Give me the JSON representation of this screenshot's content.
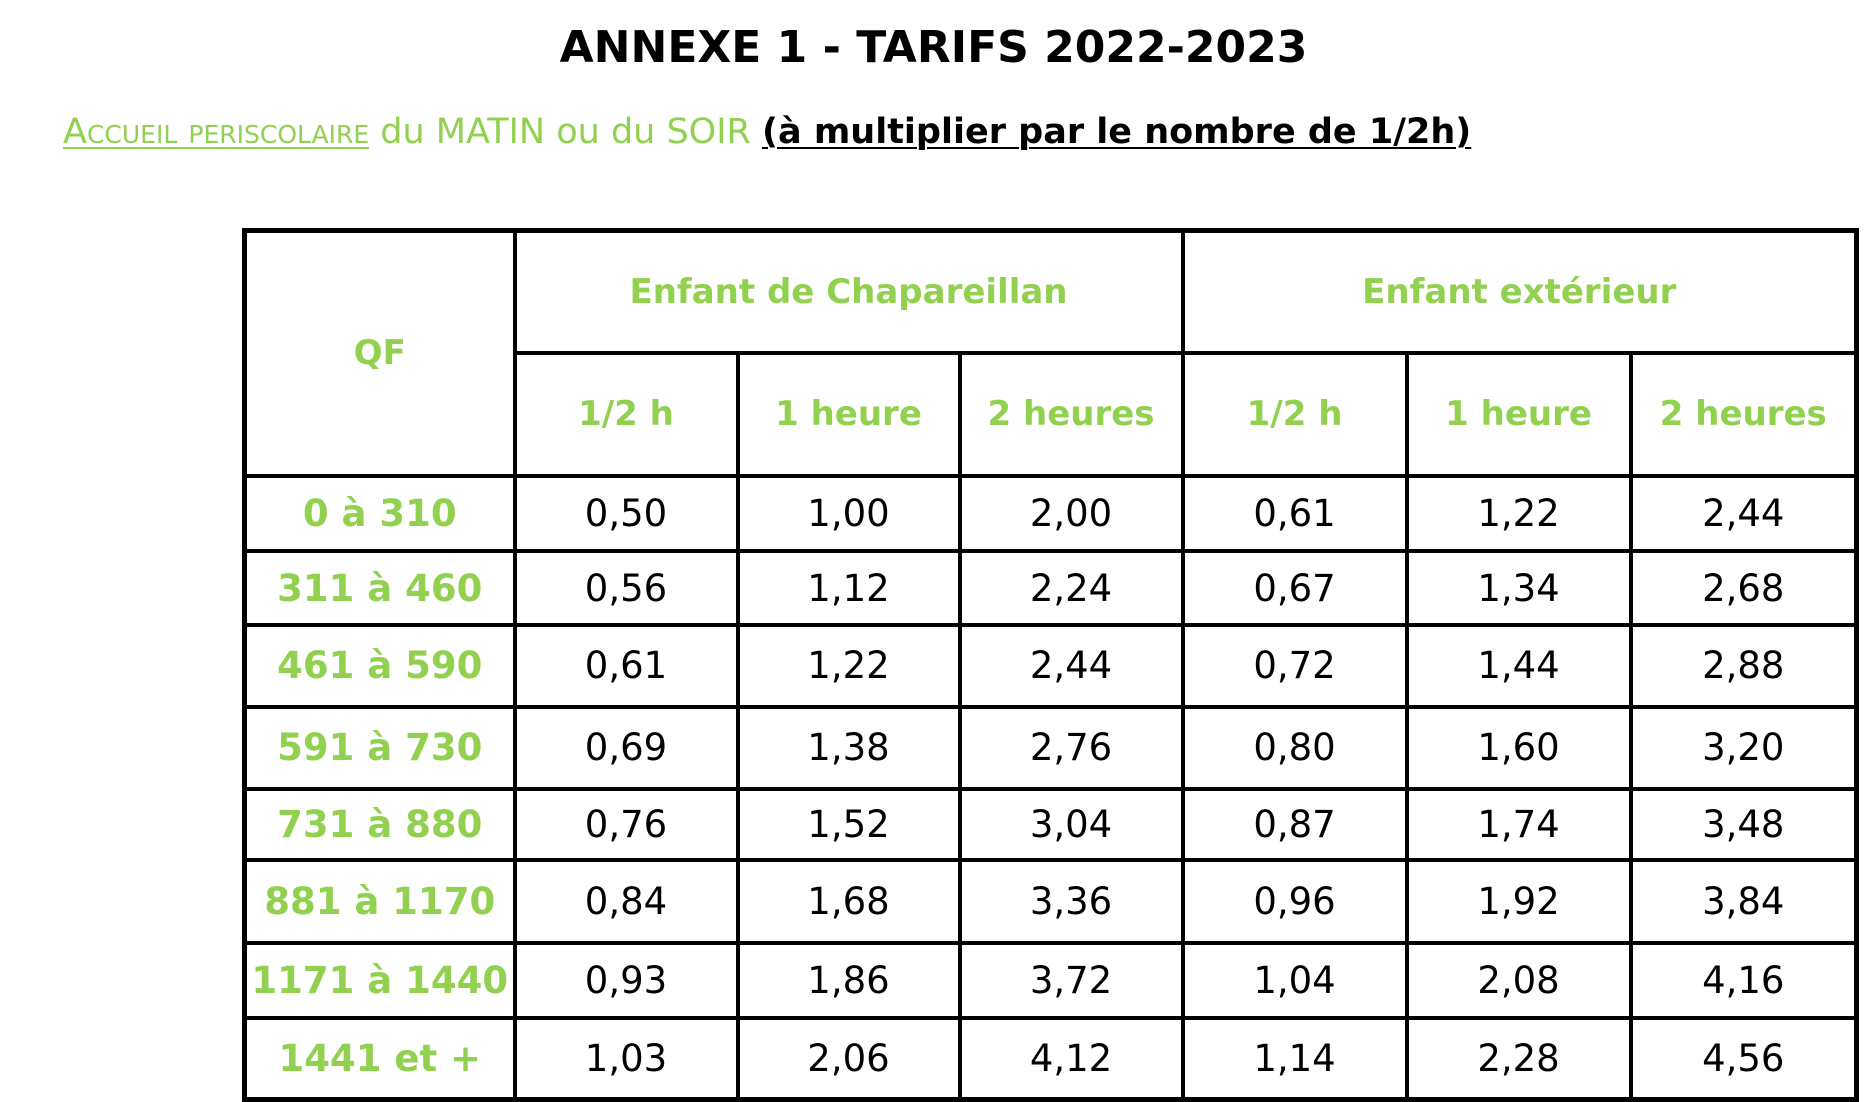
{
  "document": {
    "title": "ANNEXE 1 - TARIFS 2022-2023",
    "subtitle": {
      "part1": "Accueil periscolaire",
      "part2": " du MATIN ou du SOIR ",
      "part3": "(à multiplier par le nombre de 1/2h)"
    },
    "colors": {
      "accent_green": "#92d050",
      "text_black": "#000000"
    }
  },
  "table": {
    "qf_header": "QF",
    "groups": [
      {
        "label": "Enfant de Chapareillan"
      },
      {
        "label": "Enfant extérieur"
      }
    ],
    "subheaders": [
      "1/2 h",
      "1 heure",
      "2 heures",
      "1/2 h",
      "1 heure",
      "2 heures"
    ],
    "rows": [
      {
        "qf": "0 à 310",
        "values": [
          "0,50",
          "1,00",
          "2,00",
          "0,61",
          "1,22",
          "2,44"
        ]
      },
      {
        "qf": "311 à 460",
        "values": [
          "0,56",
          "1,12",
          "2,24",
          "0,67",
          "1,34",
          "2,68"
        ]
      },
      {
        "qf": "461 à 590",
        "values": [
          "0,61",
          "1,22",
          "2,44",
          "0,72",
          "1,44",
          "2,88"
        ]
      },
      {
        "qf": "591 à 730",
        "values": [
          "0,69",
          "1,38",
          "2,76",
          "0,80",
          "1,60",
          "3,20"
        ]
      },
      {
        "qf": "731 à 880",
        "values": [
          "0,76",
          "1,52",
          "3,04",
          "0,87",
          "1,74",
          "3,48"
        ]
      },
      {
        "qf": "881 à 1170",
        "values": [
          "0,84",
          "1,68",
          "3,36",
          "0,96",
          "1,92",
          "3,84"
        ]
      },
      {
        "qf": "1171 à 1440",
        "values": [
          "0,93",
          "1,86",
          "3,72",
          "1,04",
          "2,08",
          "4,16"
        ]
      },
      {
        "qf": "1441 et +",
        "values": [
          "1,03",
          "2,06",
          "4,12",
          "1,14",
          "2,28",
          "4,56"
        ]
      }
    ]
  }
}
